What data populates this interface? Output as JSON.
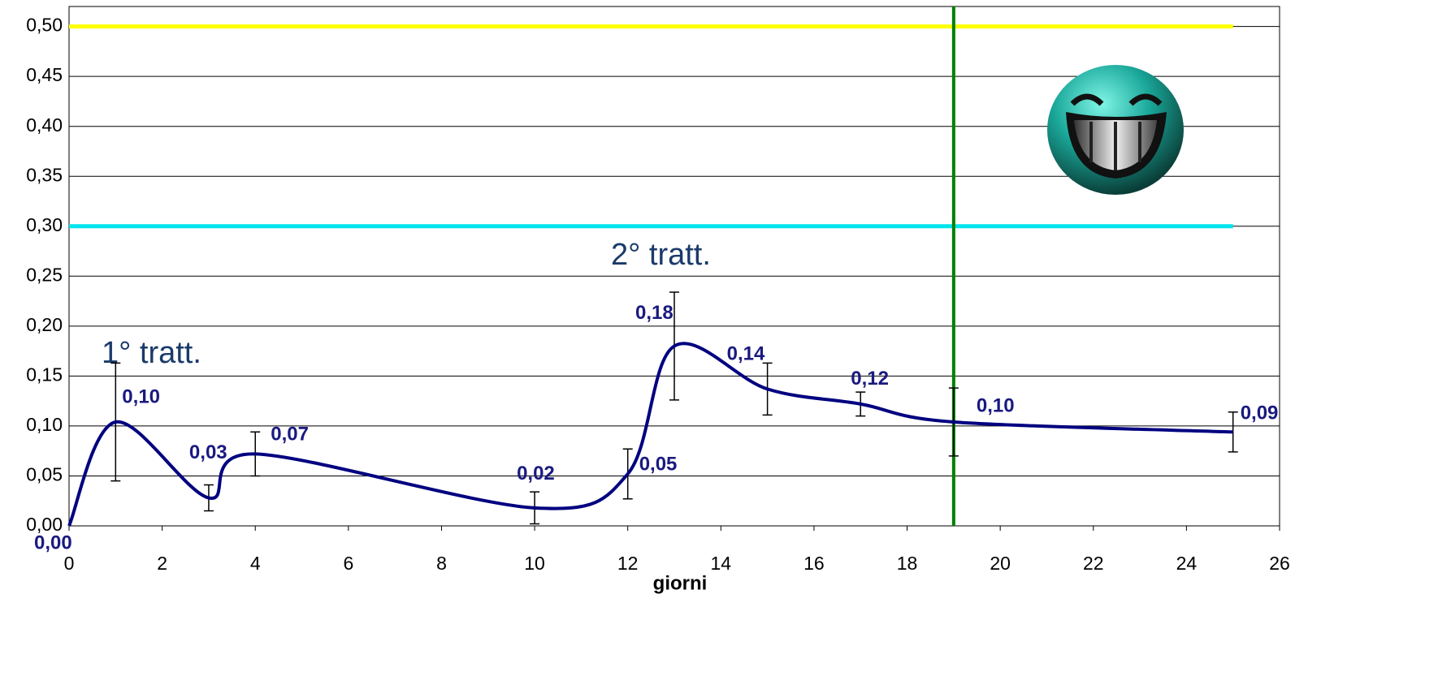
{
  "chart_data": {
    "type": "line",
    "x_label": "giorni",
    "annotations": [
      "1° tratt.",
      "2° tratt."
    ],
    "xlim": [
      0,
      26
    ],
    "xticks": [
      0,
      2,
      4,
      6,
      8,
      10,
      12,
      14,
      16,
      18,
      20,
      22,
      24,
      26
    ],
    "ylim": [
      0,
      0.52
    ],
    "yticks": [
      {
        "value": 0,
        "label": "0,00"
      },
      {
        "value": 0.05,
        "label": "0,05"
      },
      {
        "value": 0.1,
        "label": "0,10"
      },
      {
        "value": 0.15,
        "label": "0,15"
      },
      {
        "value": 0.2,
        "label": "0,20"
      },
      {
        "value": 0.25,
        "label": "0,25"
      },
      {
        "value": 0.3,
        "label": "0,30"
      },
      {
        "value": 0.35,
        "label": "0,35"
      },
      {
        "value": 0.4,
        "label": "0,40"
      },
      {
        "value": 0.45,
        "label": "0,45"
      },
      {
        "value": 0.5,
        "label": "0,50"
      }
    ],
    "grid": true,
    "x": [
      0,
      1,
      3,
      4,
      10,
      12,
      13,
      15,
      17,
      19,
      25
    ],
    "series": [
      {
        "color": "#000080",
        "values": [
          0,
          0.104,
          0.028,
          0.072,
          0.018,
          0.052,
          0.18,
          0.137,
          0.122,
          0.104,
          0.094
        ],
        "value_labels": [
          "0,00",
          "0,10",
          "0,03",
          "0,07",
          "0,02",
          "0,05",
          "0,18",
          "0,14",
          "0,12",
          "0,10",
          "0,09"
        ],
        "errors": [
          null,
          0.059,
          0.013,
          0.022,
          0.016,
          0.025,
          0.054,
          0.026,
          0.012,
          0.034,
          0.02
        ]
      }
    ],
    "reference_lines": [
      {
        "value": 0.5,
        "color": "#ffff00"
      },
      {
        "value": 0.3,
        "color": "#00e5ee"
      }
    ],
    "vertical_line": {
      "x": 19,
      "color": "#008000"
    }
  }
}
